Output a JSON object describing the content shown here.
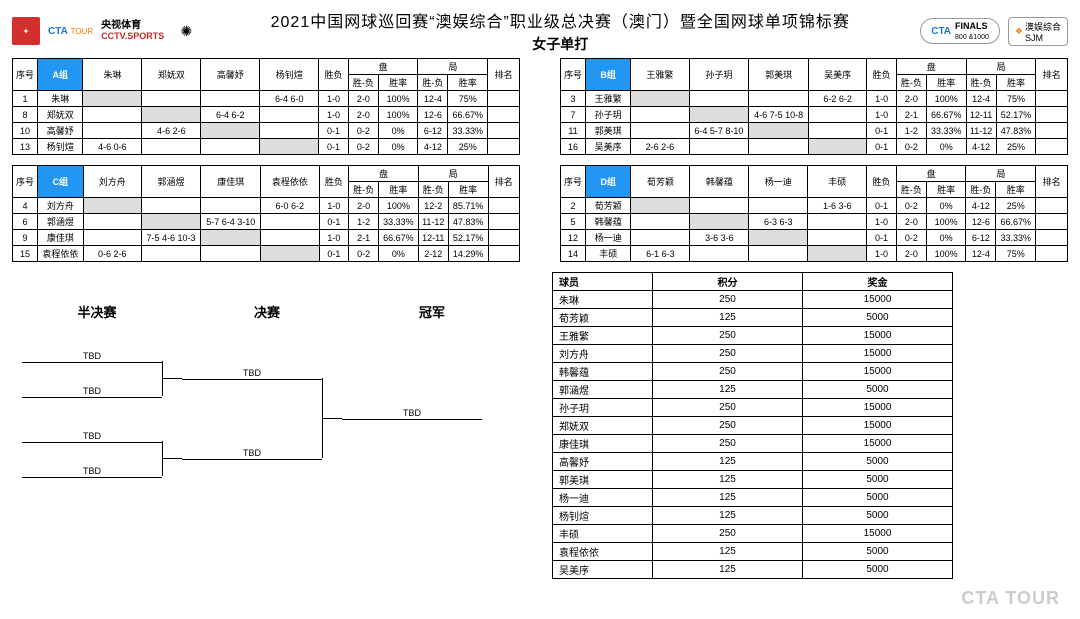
{
  "header": {
    "title": "2021中国网球巡回赛“澳娱综合”职业级总决赛（澳门）暨全国网球单项锦标赛",
    "subtitle": "女子单打",
    "left_logos": {
      "cta": "CTA",
      "cta_sub": "TOUR",
      "cctv_cn": "央视体育",
      "cctv_en": "CCTV.SPORTS"
    },
    "right_logos": {
      "finals": "FINALS",
      "finals_sub": "800 &1000",
      "sjm_cn": "澳娱综合",
      "sjm_en": "SJM"
    }
  },
  "group_headers": {
    "seq": "序号",
    "wl": "胜负",
    "pan": "盘",
    "ju": "局",
    "sf": "胜-负",
    "rate": "胜率",
    "rank": "排名"
  },
  "groups": [
    {
      "label": "A组",
      "players": [
        "朱琳",
        "郑妩双",
        "高馨妤",
        "杨钊煊"
      ],
      "rows": [
        {
          "seq": "1",
          "name": "朱琳",
          "cells": [
            "",
            "",
            "",
            "6-4 6-0"
          ],
          "wl": "1-0",
          "pan_sf": "2-0",
          "pan_rate": "100%",
          "ju_sf": "12-4",
          "ju_rate": "75%"
        },
        {
          "seq": "8",
          "name": "郑妩双",
          "cells": [
            "",
            "",
            "6-4 6-2",
            ""
          ],
          "wl": "1-0",
          "pan_sf": "2-0",
          "pan_rate": "100%",
          "ju_sf": "12-6",
          "ju_rate": "66.67%"
        },
        {
          "seq": "10",
          "name": "高馨妤",
          "cells": [
            "",
            "4-6 2-6",
            "",
            ""
          ],
          "wl": "0-1",
          "pan_sf": "0-2",
          "pan_rate": "0%",
          "ju_sf": "6-12",
          "ju_rate": "33.33%"
        },
        {
          "seq": "13",
          "name": "杨钊煊",
          "cells": [
            "4-6 0-6",
            "",
            "",
            ""
          ],
          "wl": "0-1",
          "pan_sf": "0-2",
          "pan_rate": "0%",
          "ju_sf": "4-12",
          "ju_rate": "25%"
        }
      ]
    },
    {
      "label": "B组",
      "players": [
        "王雅繁",
        "孙子玥",
        "郭美琪",
        "吴美序"
      ],
      "rows": [
        {
          "seq": "3",
          "name": "王雅繁",
          "cells": [
            "",
            "",
            "",
            "6-2 6-2"
          ],
          "wl": "1-0",
          "pan_sf": "2-0",
          "pan_rate": "100%",
          "ju_sf": "12-4",
          "ju_rate": "75%"
        },
        {
          "seq": "7",
          "name": "孙子玥",
          "cells": [
            "",
            "",
            "4-6 7-5 10-8",
            ""
          ],
          "wl": "1-0",
          "pan_sf": "2-1",
          "pan_rate": "66.67%",
          "ju_sf": "12-11",
          "ju_rate": "52.17%"
        },
        {
          "seq": "11",
          "name": "郭美琪",
          "cells": [
            "",
            "6-4 5-7 8-10",
            "",
            ""
          ],
          "wl": "0-1",
          "pan_sf": "1-2",
          "pan_rate": "33.33%",
          "ju_sf": "11-12",
          "ju_rate": "47.83%"
        },
        {
          "seq": "16",
          "name": "吴美序",
          "cells": [
            "2-6 2-6",
            "",
            "",
            ""
          ],
          "wl": "0-1",
          "pan_sf": "0-2",
          "pan_rate": "0%",
          "ju_sf": "4-12",
          "ju_rate": "25%"
        }
      ]
    },
    {
      "label": "C组",
      "players": [
        "刘方舟",
        "郭涵煜",
        "康佳琪",
        "袁程依依"
      ],
      "rows": [
        {
          "seq": "4",
          "name": "刘方舟",
          "cells": [
            "",
            "",
            "",
            "6-0 6-2"
          ],
          "wl": "1-0",
          "pan_sf": "2-0",
          "pan_rate": "100%",
          "ju_sf": "12-2",
          "ju_rate": "85.71%"
        },
        {
          "seq": "6",
          "name": "郭涵煜",
          "cells": [
            "",
            "",
            "5-7 6-4  3-10",
            ""
          ],
          "wl": "0-1",
          "pan_sf": "1-2",
          "pan_rate": "33.33%",
          "ju_sf": "11-12",
          "ju_rate": "47.83%"
        },
        {
          "seq": "9",
          "name": "康佳琪",
          "cells": [
            "",
            "7-5 4-6  10-3",
            "",
            ""
          ],
          "wl": "1-0",
          "pan_sf": "2-1",
          "pan_rate": "66.67%",
          "ju_sf": "12-11",
          "ju_rate": "52.17%"
        },
        {
          "seq": "15",
          "name": "袁程依依",
          "cells": [
            "0-6 2-6",
            "",
            "",
            ""
          ],
          "wl": "0-1",
          "pan_sf": "0-2",
          "pan_rate": "0%",
          "ju_sf": "2-12",
          "ju_rate": "14.29%"
        }
      ]
    },
    {
      "label": "D组",
      "players": [
        "荀芳颖",
        "韩馨蕴",
        "杨一迪",
        "丰硕"
      ],
      "rows": [
        {
          "seq": "2",
          "name": "荀芳颖",
          "cells": [
            "",
            "",
            "",
            "1-6 3-6"
          ],
          "wl": "0-1",
          "pan_sf": "0-2",
          "pan_rate": "0%",
          "ju_sf": "4-12",
          "ju_rate": "25%"
        },
        {
          "seq": "5",
          "name": "韩馨蕴",
          "cells": [
            "",
            "",
            "6-3 6-3",
            ""
          ],
          "wl": "1-0",
          "pan_sf": "2-0",
          "pan_rate": "100%",
          "ju_sf": "12-6",
          "ju_rate": "66.67%"
        },
        {
          "seq": "12",
          "name": "杨一迪",
          "cells": [
            "",
            "3-6 3-6",
            "",
            ""
          ],
          "wl": "0-1",
          "pan_sf": "0-2",
          "pan_rate": "0%",
          "ju_sf": "6-12",
          "ju_rate": "33.33%"
        },
        {
          "seq": "14",
          "name": "丰硕",
          "cells": [
            "6-1 6-3",
            "",
            "",
            ""
          ],
          "wl": "1-0",
          "pan_sf": "2-0",
          "pan_rate": "100%",
          "ju_sf": "12-4",
          "ju_rate": "75%"
        }
      ]
    }
  ],
  "bracket": {
    "sf_label": "半决赛",
    "f_label": "决赛",
    "c_label": "冠军",
    "tbd": "TBD"
  },
  "standings": {
    "headers": {
      "player": "球员",
      "points": "积分",
      "prize": "奖金"
    },
    "rows": [
      {
        "p": "朱琳",
        "pt": "250",
        "pr": "15000"
      },
      {
        "p": "荀芳颖",
        "pt": "125",
        "pr": "5000"
      },
      {
        "p": "王雅繁",
        "pt": "250",
        "pr": "15000"
      },
      {
        "p": "刘方舟",
        "pt": "250",
        "pr": "15000"
      },
      {
        "p": "韩馨蕴",
        "pt": "250",
        "pr": "15000"
      },
      {
        "p": "郭涵煜",
        "pt": "125",
        "pr": "5000"
      },
      {
        "p": "孙子玥",
        "pt": "250",
        "pr": "15000"
      },
      {
        "p": "郑妩双",
        "pt": "250",
        "pr": "15000"
      },
      {
        "p": "康佳琪",
        "pt": "250",
        "pr": "15000"
      },
      {
        "p": "高馨妤",
        "pt": "125",
        "pr": "5000"
      },
      {
        "p": "郭美琪",
        "pt": "125",
        "pr": "5000"
      },
      {
        "p": "杨一迪",
        "pt": "125",
        "pr": "5000"
      },
      {
        "p": "杨钊煊",
        "pt": "125",
        "pr": "5000"
      },
      {
        "p": "丰硕",
        "pt": "250",
        "pr": "15000"
      },
      {
        "p": "袁程依依",
        "pt": "125",
        "pr": "5000"
      },
      {
        "p": "吴美序",
        "pt": "125",
        "pr": "5000"
      }
    ]
  },
  "watermark": "CTA  TOUR"
}
